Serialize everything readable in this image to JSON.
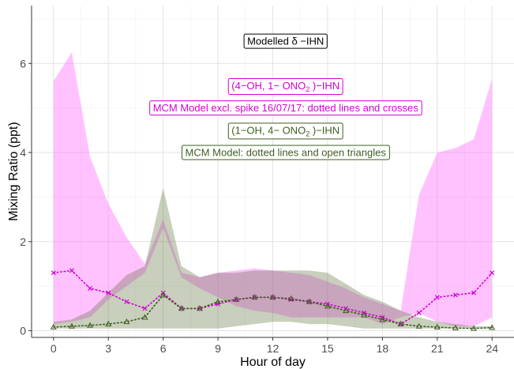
{
  "chart_data": {
    "type": "area",
    "xlabel": "Hour of day",
    "ylabel": "Mixing Ratio (ppt)",
    "xlim": [
      -1.2,
      25.2
    ],
    "ylim": [
      -0.15,
      7.3
    ],
    "x_ticks": [
      0,
      3,
      6,
      9,
      12,
      15,
      18,
      21,
      24
    ],
    "y_ticks": [
      0,
      2,
      4,
      6
    ],
    "grid": true,
    "x": [
      0,
      1,
      2,
      3,
      4,
      5,
      6,
      7,
      8,
      9,
      10,
      11,
      12,
      13,
      14,
      15,
      16,
      17,
      18,
      19,
      20,
      21,
      22,
      23,
      24
    ],
    "series": [
      {
        "kind": "ribbon",
        "color": "#ff66ff",
        "lower": [
          0.15,
          0.2,
          0.3,
          0.7,
          1.0,
          1.3,
          2.3,
          1.2,
          0.95,
          0.75,
          0.55,
          0.45,
          0.4,
          0.3,
          0.3,
          0.3,
          0.3,
          0.3,
          0.15,
          0.3,
          0.4,
          0.2,
          0.1,
          0.1,
          0.3
        ],
        "upper": [
          5.6,
          6.25,
          3.9,
          2.85,
          2.1,
          1.5,
          2.5,
          1.3,
          1.2,
          1.3,
          1.35,
          1.4,
          1.35,
          1.3,
          1.25,
          1.1,
          0.95,
          0.75,
          0.6,
          0.45,
          3.05,
          4.0,
          4.1,
          4.3,
          5.65
        ]
      },
      {
        "kind": "ribbon",
        "color": "#556b2f",
        "lower": [
          0.05,
          0.05,
          0.05,
          0.05,
          0.05,
          0.05,
          0.05,
          0.05,
          0.05,
          0.05,
          0.1,
          0.15,
          0.2,
          0.2,
          0.15,
          0.15,
          0.1,
          0.05,
          0.05,
          0.05,
          0.05,
          0.05,
          0.05,
          0.05,
          0.05
        ],
        "upper": [
          0.2,
          0.25,
          0.45,
          0.85,
          1.25,
          1.45,
          3.2,
          1.45,
          1.2,
          1.3,
          1.3,
          1.35,
          1.35,
          1.35,
          1.35,
          1.3,
          1.05,
          0.8,
          0.65,
          0.45,
          0.3,
          0.2,
          0.15,
          0.1,
          0.1
        ]
      },
      {
        "kind": "line",
        "style": "dotted-cross",
        "color": "#d400d4",
        "values": [
          1.3,
          1.35,
          0.95,
          0.85,
          0.65,
          0.5,
          0.85,
          0.5,
          0.5,
          0.6,
          0.7,
          0.75,
          0.75,
          0.7,
          0.65,
          0.6,
          0.5,
          0.4,
          0.3,
          0.15,
          0.4,
          0.75,
          0.8,
          0.85,
          1.3
        ]
      },
      {
        "kind": "line",
        "style": "dotted-triangle",
        "color": "#3d5e1f",
        "values": [
          0.08,
          0.1,
          0.12,
          0.15,
          0.2,
          0.3,
          0.8,
          0.5,
          0.5,
          0.65,
          0.7,
          0.75,
          0.75,
          0.72,
          0.65,
          0.55,
          0.45,
          0.35,
          0.25,
          0.15,
          0.1,
          0.08,
          0.06,
          0.05,
          0.07
        ]
      }
    ],
    "annotations": [
      {
        "text": "Modelled  δ −IHN",
        "x": 12.7,
        "y": 6.5,
        "color": "#000000"
      },
      {
        "text_pre": "(4−OH, 1− ONO",
        "sub": "2",
        "text_post": " )−IHN",
        "x": 12.7,
        "y": 5.5,
        "color": "#d400d4"
      },
      {
        "text": "MCM Model excl. spike 16/07/17: dotted lines and crosses",
        "x": 12.7,
        "y": 5.0,
        "color": "#d400d4"
      },
      {
        "text_pre": "(1−OH, 4− ONO",
        "sub": "2",
        "text_post": " )−IHN",
        "x": 12.7,
        "y": 4.5,
        "color": "#3d5e1f"
      },
      {
        "text": "MCM Model: dotted lines and open triangles",
        "x": 12.7,
        "y": 4.0,
        "color": "#3d5e1f"
      }
    ]
  }
}
